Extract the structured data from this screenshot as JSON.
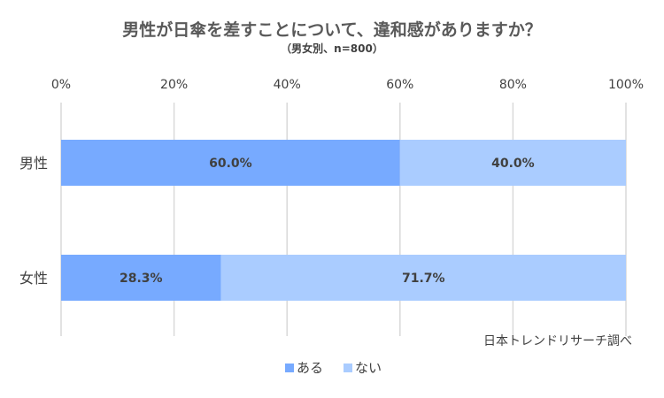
{
  "chart_data": {
    "type": "bar",
    "orientation": "horizontal",
    "stacked": true,
    "title": "男性が日傘を差すことについて、違和感がありますか？",
    "subtitle": "（男女別、n=800）",
    "categories": [
      "男性",
      "女性"
    ],
    "series": [
      {
        "name": "ある",
        "values": [
          60.0,
          28.3
        ],
        "labels": [
          "60.0%",
          "28.3%"
        ],
        "color": "#77aaff"
      },
      {
        "name": "ない",
        "values": [
          40.0,
          71.7
        ],
        "labels": [
          "40.0%",
          "71.7%"
        ],
        "color": "#aaccff"
      }
    ],
    "xlim": [
      0,
      100
    ],
    "x_ticks": [
      "0%",
      "20%",
      "40%",
      "60%",
      "80%",
      "100%"
    ],
    "grid": true,
    "legend_position": "bottom",
    "source": "日本トレンドリサーチ調べ"
  }
}
